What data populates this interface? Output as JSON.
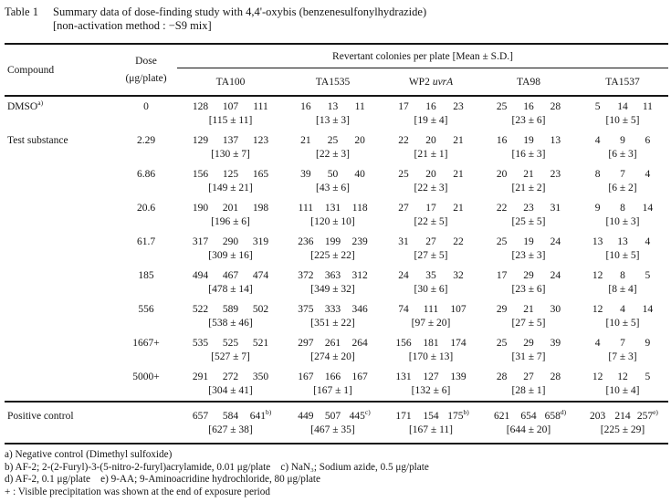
{
  "title": {
    "label": "Table 1",
    "line1": "Summary data of dose-finding study with 4,4'-oxybis (benzenesulfonylhydrazide)",
    "line2": "[non-activation method : −S9 mix]"
  },
  "header": {
    "compound": "Compound",
    "dose_line1": "Dose",
    "dose_line2": "(μg/plate)",
    "span_label": "Revertant colonies per plate [Mean ± S.D.]",
    "strains": [
      "TA100",
      "TA1535",
      "WP2",
      "TA98",
      "TA1537"
    ],
    "wp2_italic": "uvrA"
  },
  "rows": [
    {
      "compound": "DMSO",
      "compound_sup": "a)",
      "dose": "0",
      "cells": [
        {
          "values": [
            "128",
            "107",
            "111"
          ],
          "mean": "[115 ± 11]"
        },
        {
          "values": [
            "16",
            "13",
            "11"
          ],
          "mean": "[13 ± 3]"
        },
        {
          "values": [
            "17",
            "16",
            "23"
          ],
          "mean": "[19 ± 4]"
        },
        {
          "values": [
            "25",
            "16",
            "28"
          ],
          "mean": "[23 ± 6]"
        },
        {
          "values": [
            "5",
            "14",
            "11"
          ],
          "mean": "[10 ± 5]"
        }
      ]
    },
    {
      "compound": "Test substance",
      "dose": "2.29",
      "cells": [
        {
          "values": [
            "129",
            "137",
            "123"
          ],
          "mean": "[130 ± 7]"
        },
        {
          "values": [
            "21",
            "25",
            "20"
          ],
          "mean": "[22 ± 3]"
        },
        {
          "values": [
            "22",
            "20",
            "21"
          ],
          "mean": "[21 ± 1]"
        },
        {
          "values": [
            "16",
            "19",
            "13"
          ],
          "mean": "[16 ± 3]"
        },
        {
          "values": [
            "4",
            "9",
            "6"
          ],
          "mean": "[6 ± 3]"
        }
      ]
    },
    {
      "compound": "",
      "dose": "6.86",
      "cells": [
        {
          "values": [
            "156",
            "125",
            "165"
          ],
          "mean": "[149 ± 21]"
        },
        {
          "values": [
            "39",
            "50",
            "40"
          ],
          "mean": "[43 ± 6]"
        },
        {
          "values": [
            "25",
            "20",
            "21"
          ],
          "mean": "[22 ± 3]"
        },
        {
          "values": [
            "20",
            "21",
            "23"
          ],
          "mean": "[21 ± 2]"
        },
        {
          "values": [
            "8",
            "7",
            "4"
          ],
          "mean": "[6 ± 2]"
        }
      ]
    },
    {
      "compound": "",
      "dose": "20.6",
      "cells": [
        {
          "values": [
            "190",
            "201",
            "198"
          ],
          "mean": "[196 ± 6]"
        },
        {
          "values": [
            "111",
            "131",
            "118"
          ],
          "mean": "[120 ± 10]"
        },
        {
          "values": [
            "27",
            "17",
            "21"
          ],
          "mean": "[22 ± 5]"
        },
        {
          "values": [
            "22",
            "23",
            "31"
          ],
          "mean": "[25 ± 5]"
        },
        {
          "values": [
            "9",
            "8",
            "14"
          ],
          "mean": "[10 ± 3]"
        }
      ]
    },
    {
      "compound": "",
      "dose": "61.7",
      "cells": [
        {
          "values": [
            "317",
            "290",
            "319"
          ],
          "mean": "[309 ± 16]"
        },
        {
          "values": [
            "236",
            "199",
            "239"
          ],
          "mean": "[225 ± 22]"
        },
        {
          "values": [
            "31",
            "27",
            "22"
          ],
          "mean": "[27 ± 5]"
        },
        {
          "values": [
            "25",
            "19",
            "24"
          ],
          "mean": "[23 ± 3]"
        },
        {
          "values": [
            "13",
            "13",
            "4"
          ],
          "mean": "[10 ± 5]"
        }
      ]
    },
    {
      "compound": "",
      "dose": "185",
      "cells": [
        {
          "values": [
            "494",
            "467",
            "474"
          ],
          "mean": "[478 ± 14]"
        },
        {
          "values": [
            "372",
            "363",
            "312"
          ],
          "mean": "[349 ± 32]"
        },
        {
          "values": [
            "24",
            "35",
            "32"
          ],
          "mean": "[30 ± 6]"
        },
        {
          "values": [
            "17",
            "29",
            "24"
          ],
          "mean": "[23 ± 6]"
        },
        {
          "values": [
            "12",
            "8",
            "5"
          ],
          "mean": "[8 ± 4]"
        }
      ]
    },
    {
      "compound": "",
      "dose": "556",
      "cells": [
        {
          "values": [
            "522",
            "589",
            "502"
          ],
          "mean": "[538 ± 46]"
        },
        {
          "values": [
            "375",
            "333",
            "346"
          ],
          "mean": "[351 ± 22]"
        },
        {
          "values": [
            "74",
            "111",
            "107"
          ],
          "mean": "[97 ± 20]"
        },
        {
          "values": [
            "29",
            "21",
            "30"
          ],
          "mean": "[27 ± 5]"
        },
        {
          "values": [
            "12",
            "4",
            "14"
          ],
          "mean": "[10 ± 5]"
        }
      ]
    },
    {
      "compound": "",
      "dose": "1667+",
      "cells": [
        {
          "values": [
            "535",
            "525",
            "521"
          ],
          "mean": "[527 ± 7]"
        },
        {
          "values": [
            "297",
            "261",
            "264"
          ],
          "mean": "[274 ± 20]"
        },
        {
          "values": [
            "156",
            "181",
            "174"
          ],
          "mean": "[170 ± 13]"
        },
        {
          "values": [
            "25",
            "29",
            "39"
          ],
          "mean": "[31 ± 7]"
        },
        {
          "values": [
            "4",
            "7",
            "9"
          ],
          "mean": "[7 ± 3]"
        }
      ]
    },
    {
      "compound": "",
      "dose": "5000+",
      "cells": [
        {
          "values": [
            "291",
            "272",
            "350"
          ],
          "mean": "[304 ± 41]"
        },
        {
          "values": [
            "167",
            "166",
            "167"
          ],
          "mean": "[167 ± 1]"
        },
        {
          "values": [
            "131",
            "127",
            "139"
          ],
          "mean": "[132 ± 6]"
        },
        {
          "values": [
            "28",
            "27",
            "28"
          ],
          "mean": "[28 ± 1]"
        },
        {
          "values": [
            "12",
            "12",
            "5"
          ],
          "mean": "[10 ± 4]"
        }
      ]
    }
  ],
  "positive_control": {
    "compound": "Positive control",
    "dose": "",
    "cells": [
      {
        "values": [
          "657",
          "584",
          "641"
        ],
        "sup": "b)",
        "mean": "[627 ± 38]"
      },
      {
        "values": [
          "449",
          "507",
          "445"
        ],
        "sup": "c)",
        "mean": "[467 ± 35]"
      },
      {
        "values": [
          "171",
          "154",
          "175"
        ],
        "sup": "b)",
        "mean": "[167 ± 11]"
      },
      {
        "values": [
          "621",
          "654",
          "658"
        ],
        "sup": "d)",
        "mean": "[644 ± 20]"
      },
      {
        "values": [
          "203",
          "214",
          "257"
        ],
        "sup": "e)",
        "mean": "[225 ± 29]"
      }
    ]
  },
  "footnotes": [
    "a) Negative control (Dimethyl sulfoxide)",
    "b) AF-2; 2-(2-Furyl)-3-(5-nitro-2-furyl)acrylamide, 0.01 μg/plate    c) NaN₃; Sodium azide, 0.5 μg/plate",
    "d) AF-2, 0.1 μg/plate    e) 9-AA; 9-Aminoacridine hydrochloride, 80 μg/plate",
    "+ : Visible precipitation was shown at the end of exposure period"
  ]
}
